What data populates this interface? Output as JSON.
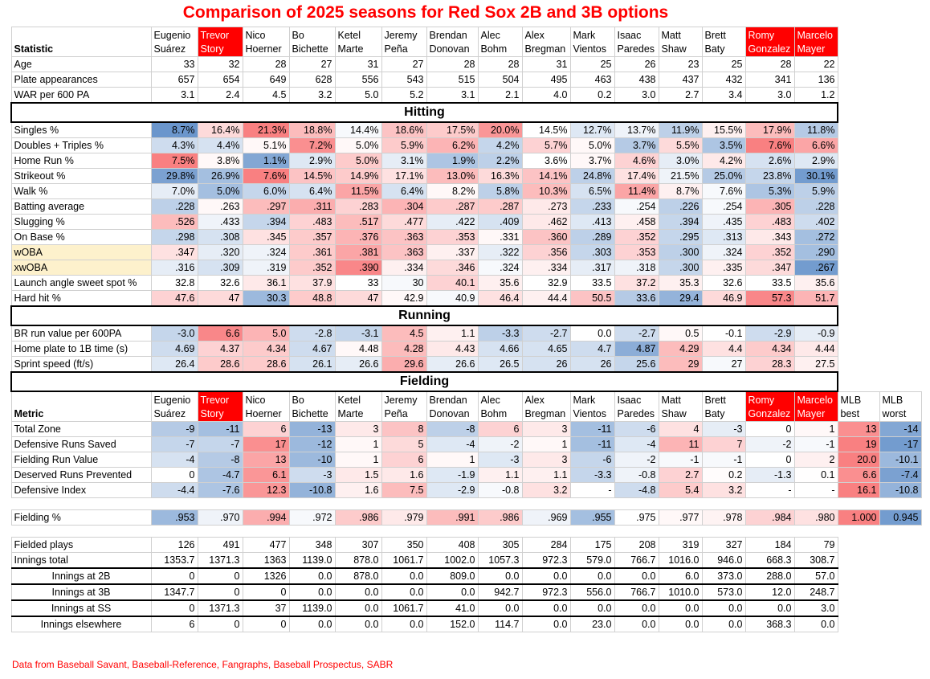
{
  "title": "Comparison of 2025 seasons for Red Sox 2B and 3B options",
  "source": "Data from Baseball Savant, Baseball-Reference, Fangraphs, Baseball Prospectus, SABR",
  "colors": {
    "title_red": "#ff0000",
    "good": "#f8696b",
    "bad": "#5a8ac6",
    "highlight_label": "#fdf1cc"
  },
  "players": [
    {
      "first": "Eugenio",
      "last": "Suárez",
      "red": false
    },
    {
      "first": "Trevor",
      "last": "Story",
      "red": true
    },
    {
      "first": "Nico",
      "last": "Hoerner",
      "red": false
    },
    {
      "first": "Bo",
      "last": "Bichette",
      "red": false
    },
    {
      "first": "Ketel",
      "last": "Marte",
      "red": false
    },
    {
      "first": "Jeremy",
      "last": "Peña",
      "red": false
    },
    {
      "first": "Brendan",
      "last": "Donovan",
      "red": false
    },
    {
      "first": "Alec",
      "last": "Bohm",
      "red": false
    },
    {
      "first": "Alex",
      "last": "Bregman",
      "red": false
    },
    {
      "first": "Mark",
      "last": "Vientos",
      "red": false
    },
    {
      "first": "Isaac",
      "last": "Paredes",
      "red": false
    },
    {
      "first": "Matt",
      "last": "Shaw",
      "red": false
    },
    {
      "first": "Brett",
      "last": "Baty",
      "red": false
    },
    {
      "first": "Romy",
      "last": "Gonzalez",
      "red": true
    },
    {
      "first": "Marcelo",
      "last": "Mayer",
      "red": true
    }
  ],
  "header_label": "Statistic",
  "fielding_header_label": "Metric",
  "mlb_headers": [
    {
      "first": "MLB",
      "last": "best"
    },
    {
      "first": "MLB",
      "last": "worst"
    }
  ],
  "sections": {
    "hitting": "Hitting",
    "running": "Running",
    "fielding": "Fielding"
  },
  "general_rows": [
    {
      "label": "Age",
      "values": [
        "33",
        "32",
        "28",
        "27",
        "31",
        "27",
        "28",
        "28",
        "31",
        "25",
        "26",
        "23",
        "25",
        "28",
        "22"
      ]
    },
    {
      "label": "Plate appearances",
      "values": [
        "657",
        "654",
        "649",
        "628",
        "556",
        "543",
        "515",
        "504",
        "495",
        "463",
        "438",
        "437",
        "432",
        "341",
        "136"
      ]
    },
    {
      "label": "WAR per 600 PA",
      "values": [
        "3.1",
        "2.4",
        "4.5",
        "3.2",
        "5.0",
        "5.2",
        "3.1",
        "2.1",
        "4.0",
        "0.2",
        "3.0",
        "2.7",
        "3.4",
        "3.0",
        "1.2"
      ]
    }
  ],
  "hitting_rows": [
    {
      "label": "Singles %",
      "values": [
        "8.7%",
        "16.4%",
        "21.3%",
        "18.8%",
        "14.4%",
        "18.6%",
        "17.5%",
        "20.0%",
        "14.5%",
        "12.7%",
        "13.7%",
        "11.9%",
        "15.5%",
        "17.9%",
        "11.8%"
      ],
      "heat": [
        -0.9,
        0.25,
        0.85,
        0.45,
        -0.05,
        0.4,
        0.35,
        0.7,
        0.0,
        -0.2,
        -0.1,
        -0.4,
        0.1,
        0.45,
        -0.45
      ]
    },
    {
      "label": "Doubles + Triples %",
      "values": [
        "4.3%",
        "4.4%",
        "5.1%",
        "7.2%",
        "5.0%",
        "5.9%",
        "6.2%",
        "4.2%",
        "5.7%",
        "5.0%",
        "3.7%",
        "5.5%",
        "3.5%",
        "7.6%",
        "6.6%"
      ],
      "heat": [
        -0.3,
        -0.25,
        0.05,
        0.75,
        0.05,
        0.35,
        0.5,
        -0.35,
        0.3,
        0.05,
        -0.45,
        0.25,
        -0.5,
        0.85,
        0.6
      ]
    },
    {
      "label": "Home Run %",
      "values": [
        "7.5%",
        "3.8%",
        "1.1%",
        "2.9%",
        "5.0%",
        "3.1%",
        "1.9%",
        "2.2%",
        "3.6%",
        "3.7%",
        "4.6%",
        "3.0%",
        "4.2%",
        "2.6%",
        "2.9%"
      ],
      "heat": [
        0.85,
        0.05,
        -0.75,
        -0.2,
        0.35,
        -0.15,
        -0.5,
        -0.4,
        0.0,
        0.05,
        0.3,
        -0.15,
        0.15,
        -0.25,
        -0.2
      ]
    },
    {
      "label": "Strikeout %",
      "values": [
        "29.8%",
        "26.9%",
        "7.6%",
        "14.5%",
        "14.9%",
        "17.1%",
        "13.0%",
        "16.3%",
        "14.1%",
        "24.8%",
        "17.4%",
        "21.5%",
        "25.0%",
        "23.8%",
        "30.1%"
      ],
      "heat": [
        -0.8,
        -0.55,
        0.85,
        0.4,
        0.35,
        0.2,
        0.45,
        0.25,
        0.4,
        -0.4,
        0.2,
        -0.1,
        -0.45,
        -0.35,
        -0.85
      ]
    },
    {
      "label": "Walk %",
      "values": [
        "7.0%",
        "5.0%",
        "6.0%",
        "6.4%",
        "11.5%",
        "6.4%",
        "8.2%",
        "5.8%",
        "10.3%",
        "6.5%",
        "11.4%",
        "8.7%",
        "7.6%",
        "5.3%",
        "5.9%"
      ],
      "heat": [
        -0.15,
        -0.55,
        -0.35,
        -0.25,
        0.6,
        -0.25,
        0.05,
        -0.4,
        0.45,
        -0.25,
        0.6,
        0.1,
        -0.05,
        -0.5,
        -0.4
      ]
    },
    {
      "label": "Batting average",
      "values": [
        ".228",
        ".263",
        ".297",
        ".311",
        ".283",
        ".304",
        ".287",
        ".287",
        ".273",
        ".233",
        ".254",
        ".226",
        ".254",
        ".305",
        ".228"
      ],
      "heat": [
        -0.4,
        0.05,
        0.45,
        0.55,
        0.3,
        0.5,
        0.35,
        0.35,
        0.15,
        -0.35,
        -0.05,
        -0.4,
        -0.05,
        0.5,
        -0.4
      ]
    },
    {
      "label": "Slugging %",
      "values": [
        ".526",
        ".433",
        ".394",
        ".483",
        ".517",
        ".477",
        ".422",
        ".409",
        ".462",
        ".413",
        ".458",
        ".394",
        ".435",
        ".483",
        ".402"
      ],
      "heat": [
        0.45,
        -0.1,
        -0.35,
        0.3,
        0.45,
        0.25,
        -0.15,
        -0.25,
        0.15,
        -0.2,
        0.1,
        -0.35,
        -0.1,
        0.3,
        -0.3
      ]
    },
    {
      "label": "On Base %",
      "values": [
        ".298",
        ".308",
        ".345",
        ".357",
        ".376",
        ".363",
        ".353",
        ".331",
        ".360",
        ".289",
        ".352",
        ".295",
        ".313",
        ".343",
        ".272"
      ],
      "heat": [
        -0.35,
        -0.25,
        0.2,
        0.35,
        0.5,
        0.4,
        0.3,
        0.05,
        0.4,
        -0.4,
        0.3,
        -0.35,
        -0.2,
        0.15,
        -0.55
      ]
    },
    {
      "label": "wOBA",
      "hl": true,
      "values": [
        ".347",
        ".320",
        ".324",
        ".361",
        ".381",
        ".363",
        ".337",
        ".322",
        ".356",
        ".303",
        ".353",
        ".300",
        ".324",
        ".352",
        ".290"
      ],
      "heat": [
        0.2,
        -0.15,
        -0.1,
        0.35,
        0.6,
        0.4,
        0.1,
        -0.15,
        0.3,
        -0.35,
        0.3,
        -0.4,
        -0.1,
        0.3,
        -0.55
      ]
    },
    {
      "label": "xwOBA",
      "hl": true,
      "values": [
        ".316",
        ".309",
        ".319",
        ".352",
        ".390",
        ".334",
        ".346",
        ".324",
        ".334",
        ".317",
        ".318",
        ".300",
        ".335",
        ".347",
        ".267"
      ],
      "heat": [
        -0.15,
        -0.25,
        -0.1,
        0.35,
        0.8,
        0.1,
        0.25,
        -0.05,
        0.1,
        -0.15,
        -0.1,
        -0.35,
        0.1,
        0.25,
        -0.85
      ]
    },
    {
      "label": "Launch angle sweet spot %",
      "values": [
        "32.8",
        "32.6",
        "36.1",
        "37.9",
        "33",
        "30",
        "40.1",
        "35.6",
        "32.9",
        "33.5",
        "37.2",
        "35.3",
        "32.6",
        "33.5",
        "35.6"
      ],
      "heat": [
        0.0,
        0.0,
        0.15,
        0.2,
        0.0,
        -0.05,
        0.3,
        0.1,
        0.0,
        0.0,
        0.2,
        0.1,
        0.0,
        0.0,
        0.1
      ]
    },
    {
      "label": "Hard hit %",
      "values": [
        "47.6",
        "47",
        "30.3",
        "48.8",
        "47",
        "42.9",
        "40.9",
        "46.4",
        "44.4",
        "50.5",
        "33.6",
        "29.4",
        "46.9",
        "57.3",
        "51.7"
      ],
      "heat": [
        0.3,
        0.25,
        -0.6,
        0.35,
        0.25,
        0.05,
        -0.05,
        0.2,
        0.1,
        0.4,
        -0.45,
        -0.65,
        0.25,
        0.8,
        0.5
      ]
    }
  ],
  "running_rows": [
    {
      "label": "BR run value per 600PA",
      "values": [
        "-3.0",
        "6.6",
        "5.0",
        "-2.8",
        "-3.1",
        "4.5",
        "1.1",
        "-3.3",
        "-2.7",
        "0.0",
        "-2.7",
        "0.5",
        "-0.1",
        "-2.9",
        "-0.9"
      ],
      "heat": [
        -0.35,
        0.8,
        0.5,
        -0.3,
        -0.35,
        0.45,
        0.1,
        -0.4,
        -0.3,
        0.0,
        -0.3,
        0.05,
        0.0,
        -0.3,
        -0.15
      ]
    },
    {
      "label": "Home plate to 1B time (s)",
      "values": [
        "4.69",
        "4.37",
        "4.34",
        "4.67",
        "4.48",
        "4.28",
        "4.43",
        "4.66",
        "4.65",
        "4.7",
        "4.87",
        "4.29",
        "4.4",
        "4.34",
        "4.44"
      ],
      "heat": [
        -0.3,
        0.3,
        0.35,
        -0.3,
        0.05,
        0.45,
        0.15,
        -0.25,
        -0.25,
        -0.3,
        -0.7,
        0.45,
        0.2,
        0.35,
        0.15
      ]
    },
    {
      "label": "Sprint speed (ft/s)",
      "values": [
        "26.4",
        "28.6",
        "28.6",
        "26.1",
        "26.6",
        "29.6",
        "26.6",
        "26.5",
        "26",
        "26",
        "25.6",
        "29",
        "27",
        "28.3",
        "27.5"
      ],
      "heat": [
        -0.2,
        0.35,
        0.35,
        -0.25,
        -0.15,
        0.55,
        -0.15,
        -0.2,
        -0.25,
        -0.25,
        -0.35,
        0.45,
        -0.05,
        0.3,
        0.1
      ]
    }
  ],
  "fielding_rows": [
    {
      "label": "Total Zone",
      "values": [
        "-9",
        "-11",
        "6",
        "-13",
        "3",
        "8",
        "-8",
        "6",
        "3",
        "-11",
        "-6",
        "4",
        "-3",
        "0",
        "1",
        "13",
        "-14"
      ],
      "heat": [
        -0.45,
        -0.55,
        0.3,
        -0.65,
        0.15,
        0.4,
        -0.4,
        0.3,
        0.15,
        -0.55,
        -0.3,
        0.2,
        -0.15,
        0,
        0.05,
        0.75,
        -0.75
      ]
    },
    {
      "label": "Defensive Runs Saved",
      "values": [
        "-7",
        "-7",
        "17",
        "-12",
        "1",
        "5",
        "-4",
        "-2",
        "1",
        "-11",
        "-4",
        "11",
        "7",
        "-2",
        "-1",
        "19",
        "-17"
      ],
      "heat": [
        -0.35,
        -0.35,
        0.75,
        -0.6,
        0.05,
        0.25,
        -0.2,
        -0.1,
        0.05,
        -0.55,
        -0.2,
        0.5,
        0.3,
        -0.1,
        -0.05,
        0.85,
        -0.85
      ]
    },
    {
      "label": "Fielding Run Value",
      "values": [
        "-4",
        "-8",
        "13",
        "-10",
        "1",
        "6",
        "1",
        "-3",
        "3",
        "-6",
        "-2",
        "-1",
        "-1",
        "0",
        "2",
        "20.0",
        "-10.1"
      ],
      "heat": [
        -0.25,
        -0.45,
        0.6,
        -0.6,
        0.05,
        0.3,
        0.05,
        -0.2,
        0.15,
        -0.35,
        -0.1,
        -0.05,
        -0.05,
        0,
        0.1,
        0.85,
        -0.6
      ]
    },
    {
      "label": "Deserved Runs Prevented",
      "values": [
        "0",
        "-4.7",
        "6.1",
        "-3",
        "1.5",
        "1.6",
        "-1.9",
        "1.1",
        "1.1",
        "-3.3",
        "-0.8",
        "2.7",
        "0.2",
        "-1.3",
        "0.1",
        "6.6",
        "-7.4"
      ],
      "heat": [
        0,
        -0.5,
        0.7,
        -0.3,
        0.15,
        0.15,
        -0.2,
        0.1,
        0.1,
        -0.35,
        -0.1,
        0.3,
        0.02,
        -0.15,
        0.01,
        0.75,
        -0.8
      ]
    },
    {
      "label": "Defensive Index",
      "values": [
        "-4.4",
        "-7.6",
        "12.3",
        "-10.8",
        "1.6",
        "7.5",
        "-2.9",
        "-0.8",
        "3.2",
        "-",
        "-4.8",
        "5.4",
        "3.2",
        "-",
        "-",
        "16.1",
        "-10.8"
      ],
      "heat": [
        -0.3,
        -0.5,
        0.7,
        -0.65,
        0.1,
        0.45,
        -0.2,
        -0.05,
        0.2,
        0,
        -0.3,
        0.35,
        0.2,
        0,
        0,
        0.85,
        -0.65
      ]
    }
  ],
  "fielding_pct": {
    "label": "Fielding %",
    "values": [
      ".953",
      ".970",
      ".994",
      ".972",
      ".986",
      ".979",
      ".991",
      ".986",
      ".969",
      ".955",
      ".975",
      ".977",
      ".978",
      ".984",
      ".980",
      "1.000",
      "0.945"
    ],
    "heat": [
      -0.6,
      -0.1,
      0.55,
      -0.05,
      0.35,
      0.15,
      0.45,
      0.35,
      -0.1,
      -0.55,
      0.0,
      0.05,
      0.08,
      0.3,
      0.2,
      0.85,
      -0.85
    ]
  },
  "plain_rows": [
    {
      "label": "Fielded plays",
      "indent": false,
      "values": [
        "126",
        "491",
        "477",
        "348",
        "307",
        "350",
        "408",
        "305",
        "284",
        "175",
        "208",
        "319",
        "327",
        "184",
        "79"
      ]
    },
    {
      "label": "Innings total",
      "indent": false,
      "values": [
        "1353.7",
        "1371.3",
        "1363",
        "1139.0",
        "878.0",
        "1061.7",
        "1002.0",
        "1057.3",
        "972.3",
        "579.0",
        "766.7",
        "1016.0",
        "946.0",
        "668.3",
        "308.7"
      ]
    },
    {
      "label": "Innings at 2B",
      "indent": true,
      "values": [
        "0",
        "0",
        "1326",
        "0.0",
        "878.0",
        "0.0",
        "809.0",
        "0.0",
        "0.0",
        "0.0",
        "0.0",
        "6.0",
        "373.0",
        "288.0",
        "57.0"
      ]
    },
    {
      "label": "Innings at 3B",
      "indent": true,
      "values": [
        "1347.7",
        "0",
        "0",
        "0.0",
        "0.0",
        "0.0",
        "0.0",
        "942.7",
        "972.3",
        "556.0",
        "766.7",
        "1010.0",
        "573.0",
        "12.0",
        "248.7"
      ]
    },
    {
      "label": "Innings at SS",
      "indent": true,
      "values": [
        "0",
        "1371.3",
        "37",
        "1139.0",
        "0.0",
        "1061.7",
        "41.0",
        "0.0",
        "0.0",
        "0.0",
        "0.0",
        "0.0",
        "0.0",
        "0.0",
        "3.0"
      ]
    },
    {
      "label": "Innings elsewhere",
      "indent": true,
      "values": [
        "6",
        "0",
        "0",
        "0.0",
        "0.0",
        "0.0",
        "152.0",
        "114.7",
        "0.0",
        "23.0",
        "0.0",
        "0.0",
        "0.0",
        "368.3",
        "0.0"
      ]
    }
  ]
}
